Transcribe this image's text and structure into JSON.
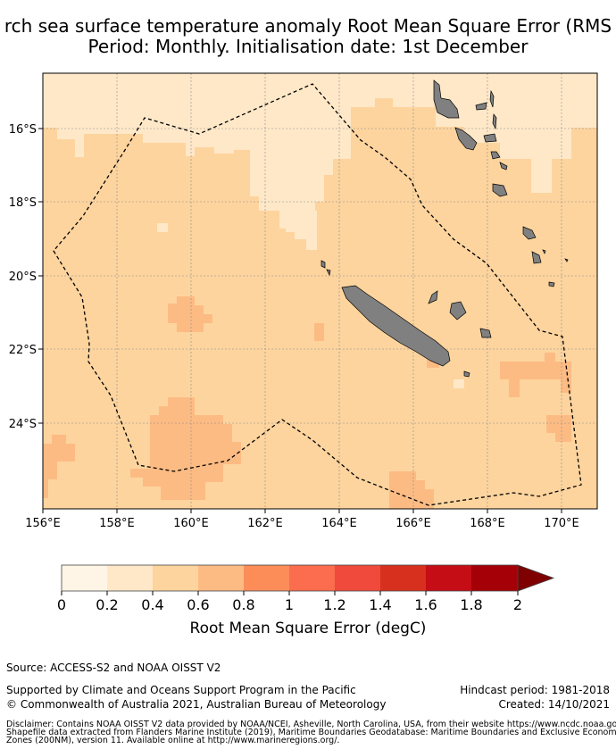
{
  "title": {
    "line1": "rch sea surface temperature anomaly Root Mean Square Error (RMS",
    "line2": "Period: Monthly. Initialisation date: 1st December"
  },
  "map": {
    "lon_labels": [
      "156°E",
      "158°E",
      "160°E",
      "162°E",
      "164°E",
      "166°E",
      "168°E",
      "170°E"
    ],
    "lat_labels": [
      "16°S",
      "18°S",
      "20°S",
      "22°S",
      "24°S"
    ],
    "land_color": "#808080",
    "ocean_base_color": "#fdd49e"
  },
  "colorbar": {
    "label": "Root Mean Square Error (degC)",
    "ticks": [
      "0",
      "0.2",
      "0.4",
      "0.6",
      "0.8",
      "1",
      "1.2",
      "1.4",
      "1.6",
      "1.8",
      "2"
    ],
    "colors": [
      "#fff5e6",
      "#fee8c8",
      "#fdd49e",
      "#fdbb84",
      "#fc8d59",
      "#fc6c4f",
      "#ef4a3c",
      "#d7301f",
      "#c50d16",
      "#a50008"
    ],
    "extend_color": "#7f0000"
  },
  "footer": {
    "source": "Source: ACCESS-S2 and NOAA OISST V2",
    "supported": "Supported by Climate and Oceans Support Program in the Pacific",
    "copyright": "© Commonwealth of Australia 2021, Australian Bureau of Meteorology",
    "hindcast": "Hindcast period: 1981-2018",
    "created": "Created: 14/10/2021",
    "disclaimer1": "Disclaimer: Contains NOAA OISST V2 data provided by NOAA/NCEI, Asheville, North Carolina, USA, from their website https://www.ncdc.noaa.gov/ois",
    "disclaimer2": "Shapefile data extracted from Flanders Marine Institute (2019), Maritime Boundaries Geodatabase: Maritime Boundaries and Exclusive Economic",
    "disclaimer3": "Zones (200NM), version 11. Available online at http://www.marineregions.org/."
  }
}
